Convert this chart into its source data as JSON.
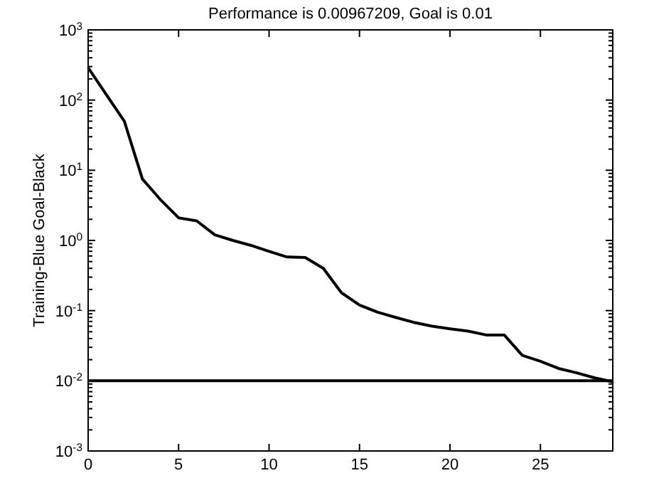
{
  "chart_data": {
    "type": "line",
    "title": "Performance is 0.00967209, Goal is 0.01",
    "ylabel": "Training-Blue  Goal-Black",
    "log": "y",
    "x": [
      0,
      1,
      2,
      3,
      4,
      5,
      6,
      7,
      8,
      9,
      10,
      11,
      12,
      13,
      14,
      15,
      16,
      17,
      18,
      19,
      20,
      21,
      22,
      23,
      24,
      25,
      26,
      27,
      28,
      29
    ],
    "series": [
      {
        "color": "#000000",
        "values": [
          290,
          120,
          50,
          7.5,
          3.8,
          2.1,
          1.9,
          1.2,
          1.0,
          0.85,
          0.7,
          0.58,
          0.57,
          0.4,
          0.18,
          0.12,
          0.095,
          0.08,
          0.068,
          0.06,
          0.055,
          0.051,
          0.045,
          0.045,
          0.023,
          0.019,
          0.015,
          0.013,
          0.011,
          0.00967
        ]
      }
    ],
    "xlim": [
      0,
      29
    ],
    "xticks": [
      0,
      5,
      10,
      15,
      20,
      25
    ],
    "ylim": [
      0.001,
      1000
    ],
    "yticks": [
      {
        "value": 0.001,
        "label": "10$^{-3}$"
      },
      {
        "value": 0.01,
        "label": "10$^{-2}$"
      },
      {
        "value": 0.1,
        "label": "10$^{-1}$"
      },
      {
        "value": 1,
        "label": "10$^{0}$"
      },
      {
        "value": 10,
        "label": "10$^{1}$"
      },
      {
        "value": 100,
        "label": "10$^{2}$"
      },
      {
        "value": 1000,
        "label": "10$^{3}$"
      }
    ],
    "ref_lines": [
      {
        "axis": "y",
        "value": 0.01,
        "color": "#000000"
      }
    ],
    "grid": false,
    "marker": "none",
    "line_style": "solid"
  }
}
